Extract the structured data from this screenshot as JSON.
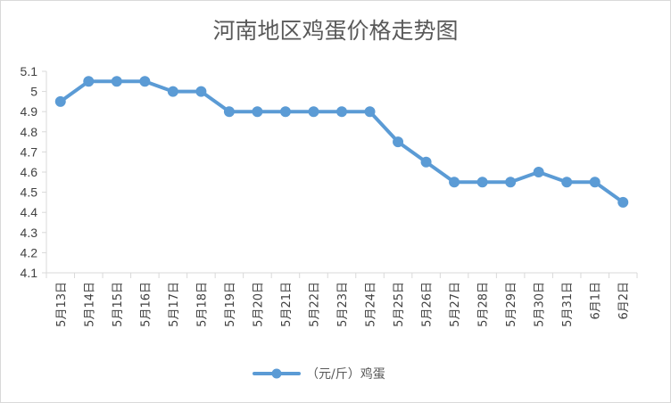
{
  "chart_data": {
    "type": "line",
    "title": "河南地区鸡蛋价格走势图",
    "categories": [
      "5月13日",
      "5月14日",
      "5月15日",
      "5月16日",
      "5月17日",
      "5月18日",
      "5月19日",
      "5月20日",
      "5月21日",
      "5月22日",
      "5月23日",
      "5月24日",
      "5月25日",
      "5月26日",
      "5月27日",
      "5月28日",
      "5月29日",
      "5月30日",
      "5月31日",
      "6月1日",
      "6月2日"
    ],
    "series": [
      {
        "name": "（元/斤）鸡蛋",
        "values": [
          4.95,
          5.05,
          5.05,
          5.05,
          5.0,
          5.0,
          4.9,
          4.9,
          4.9,
          4.9,
          4.9,
          4.9,
          4.75,
          4.65,
          4.55,
          4.55,
          4.55,
          4.6,
          4.55,
          4.55,
          4.45
        ]
      }
    ],
    "yticks": [
      "4.1",
      "4.2",
      "4.3",
      "4.4",
      "4.5",
      "4.6",
      "4.7",
      "4.8",
      "4.9",
      "5",
      "5.1"
    ],
    "ylim": [
      4.1,
      5.1
    ],
    "xlabel": "",
    "ylabel": "",
    "grid": false,
    "legend": "bottom",
    "colors": {
      "series": "#5b9bd5",
      "axis": "#d9d9d9"
    }
  }
}
